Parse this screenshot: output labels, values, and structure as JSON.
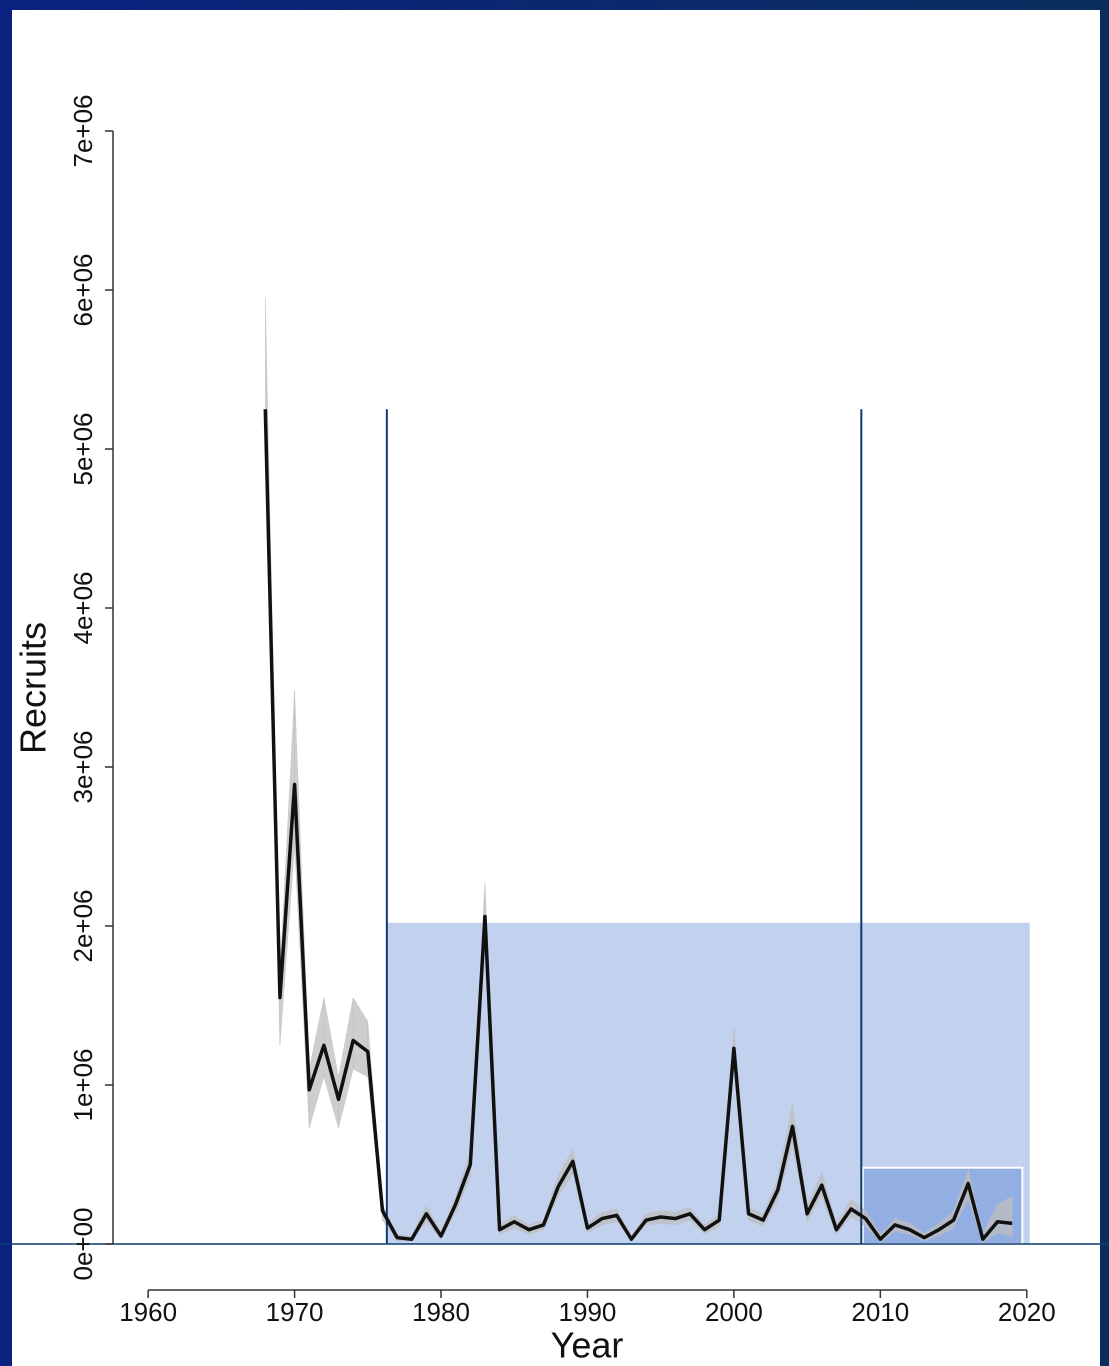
{
  "chart_data": {
    "type": "line",
    "x_label": "Year",
    "y_label": "Recruits",
    "x": [
      1968,
      1969,
      1970,
      1971,
      1972,
      1973,
      1974,
      1975,
      1976,
      1977,
      1978,
      1979,
      1980,
      1981,
      1982,
      1983,
      1984,
      1985,
      1986,
      1987,
      1988,
      1989,
      1990,
      1991,
      1992,
      1993,
      1994,
      1995,
      1996,
      1997,
      1998,
      1999,
      2000,
      2001,
      2002,
      2003,
      2004,
      2005,
      2006,
      2007,
      2008,
      2009,
      2010,
      2011,
      2012,
      2013,
      2014,
      2015,
      2016,
      2017,
      2018,
      2019
    ],
    "series": [
      {
        "name": "Recruits",
        "color": "#111111",
        "values": [
          5250000,
          1550000,
          2890000,
          970000,
          1250000,
          910000,
          1280000,
          1210000,
          210000,
          40000,
          30000,
          190000,
          50000,
          250000,
          500000,
          2060000,
          90000,
          140000,
          90000,
          120000,
          360000,
          520000,
          100000,
          160000,
          180000,
          30000,
          150000,
          170000,
          160000,
          190000,
          90000,
          150000,
          1230000,
          190000,
          150000,
          340000,
          740000,
          190000,
          370000,
          90000,
          220000,
          160000,
          30000,
          120000,
          90000,
          40000,
          90000,
          150000,
          380000,
          30000,
          140000,
          130000
        ]
      },
      {
        "name": "Lower",
        "color": "#bdbdbd",
        "values": [
          5200000,
          1250000,
          2500000,
          730000,
          1050000,
          730000,
          1100000,
          1050000,
          150000,
          20000,
          20000,
          140000,
          30000,
          200000,
          420000,
          1900000,
          60000,
          100000,
          60000,
          90000,
          300000,
          440000,
          70000,
          120000,
          140000,
          20000,
          120000,
          130000,
          120000,
          150000,
          60000,
          110000,
          1100000,
          150000,
          110000,
          280000,
          620000,
          140000,
          300000,
          60000,
          170000,
          110000,
          10000,
          80000,
          60000,
          20000,
          50000,
          100000,
          280000,
          10000,
          70000,
          50000
        ]
      },
      {
        "name": "Upper",
        "color": "#bdbdbd",
        "values": [
          5950000,
          1700000,
          3480000,
          1100000,
          1550000,
          1050000,
          1550000,
          1400000,
          250000,
          60000,
          50000,
          240000,
          80000,
          300000,
          580000,
          2270000,
          120000,
          180000,
          120000,
          150000,
          430000,
          600000,
          130000,
          200000,
          220000,
          50000,
          190000,
          210000,
          200000,
          230000,
          120000,
          190000,
          1360000,
          230000,
          190000,
          410000,
          880000,
          240000,
          450000,
          130000,
          280000,
          210000,
          60000,
          160000,
          130000,
          70000,
          130000,
          210000,
          470000,
          70000,
          250000,
          300000
        ]
      }
    ],
    "xlim": [
      1957.6,
      2025
    ],
    "ylim": [
      0,
      7000000
    ],
    "xticks": [
      1960,
      1970,
      1980,
      1990,
      2000,
      2010,
      2020
    ],
    "yticks": [
      {
        "value": 0,
        "label": "0e+00"
      },
      {
        "value": 1000000,
        "label": "1e+06"
      },
      {
        "value": 2000000,
        "label": "2e+06"
      },
      {
        "value": 3000000,
        "label": "3e+06"
      },
      {
        "value": 4000000,
        "label": "4e+06"
      },
      {
        "value": 5000000,
        "label": "5e+06"
      },
      {
        "value": 6000000,
        "label": "6e+06"
      },
      {
        "value": 7000000,
        "label": "7e+06"
      }
    ],
    "rects": [
      {
        "x": [
          1976.3,
          2020.2
        ],
        "y": [
          0,
          2020000
        ],
        "color": "#c2d1ee"
      },
      {
        "x": [
          2008.8,
          2019.7
        ],
        "y": [
          0,
          480000
        ],
        "color": "#93aee3"
      }
    ],
    "vlines": {
      "x": [
        1976.3,
        2008.7
      ],
      "top": 5250000,
      "color": "#0f3b6e"
    },
    "hline": {
      "y": 0,
      "color": "#0f3b6e"
    }
  }
}
